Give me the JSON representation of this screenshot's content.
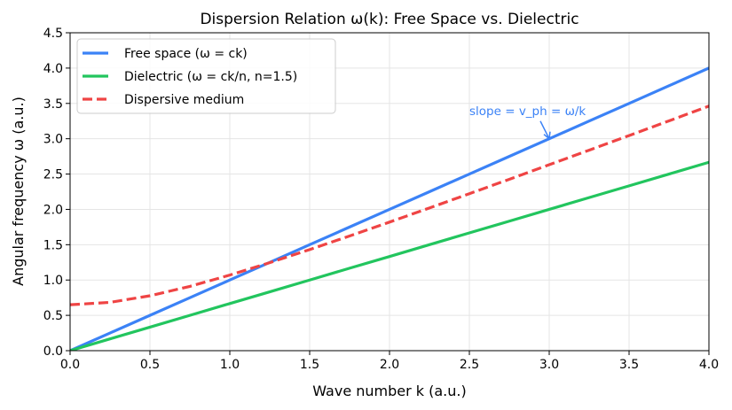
{
  "chart_data": {
    "type": "line",
    "title": "Dispersion Relation ω(k): Free Space vs. Dielectric",
    "xlabel": "Wave number k (a.u.)",
    "ylabel": "Angular frequency ω (a.u.)",
    "xlim": [
      0,
      4
    ],
    "ylim": [
      0,
      4.5
    ],
    "xticks": [
      "0.0",
      "0.5",
      "1.0",
      "1.5",
      "2.0",
      "2.5",
      "3.0",
      "3.5",
      "4.0"
    ],
    "yticks": [
      "0.0",
      "0.5",
      "1.0",
      "1.5",
      "2.0",
      "2.5",
      "3.0",
      "3.5",
      "4.0",
      "4.5"
    ],
    "grid": true,
    "legend_position": "top-left",
    "x": [
      0,
      0.25,
      0.5,
      0.75,
      1,
      1.25,
      1.5,
      1.75,
      2,
      2.25,
      2.5,
      2.75,
      3,
      3.25,
      3.5,
      3.75,
      4
    ],
    "series": [
      {
        "name": "Free space (ω = ck)",
        "color": "#3b82f6",
        "style": "solid",
        "values": [
          0,
          0.25,
          0.5,
          0.75,
          1,
          1.25,
          1.5,
          1.75,
          2,
          2.25,
          2.5,
          2.75,
          3,
          3.25,
          3.5,
          3.75,
          4
        ]
      },
      {
        "name": "Dielectric (ω = ck/n, n=1.5)",
        "color": "#22c55e",
        "style": "solid",
        "values": [
          0,
          0.167,
          0.333,
          0.5,
          0.667,
          0.833,
          1,
          1.167,
          1.333,
          1.5,
          1.667,
          1.833,
          2,
          2.167,
          2.333,
          2.5,
          2.667
        ]
      },
      {
        "name": "Dispersive medium",
        "color": "#ef4444",
        "style": "dashed",
        "values": [
          0.65,
          0.684,
          0.777,
          0.91,
          1.07,
          1.246,
          1.431,
          1.623,
          1.82,
          2.02,
          2.222,
          2.426,
          2.632,
          2.838,
          3.045,
          3.253,
          3.462
        ]
      }
    ],
    "annotation": {
      "text": "slope = v_ph = ω/k",
      "text_at": [
        2.5,
        3.4
      ],
      "arrow_to": [
        3.0,
        3.0
      ],
      "color": "#3b82f6"
    }
  }
}
